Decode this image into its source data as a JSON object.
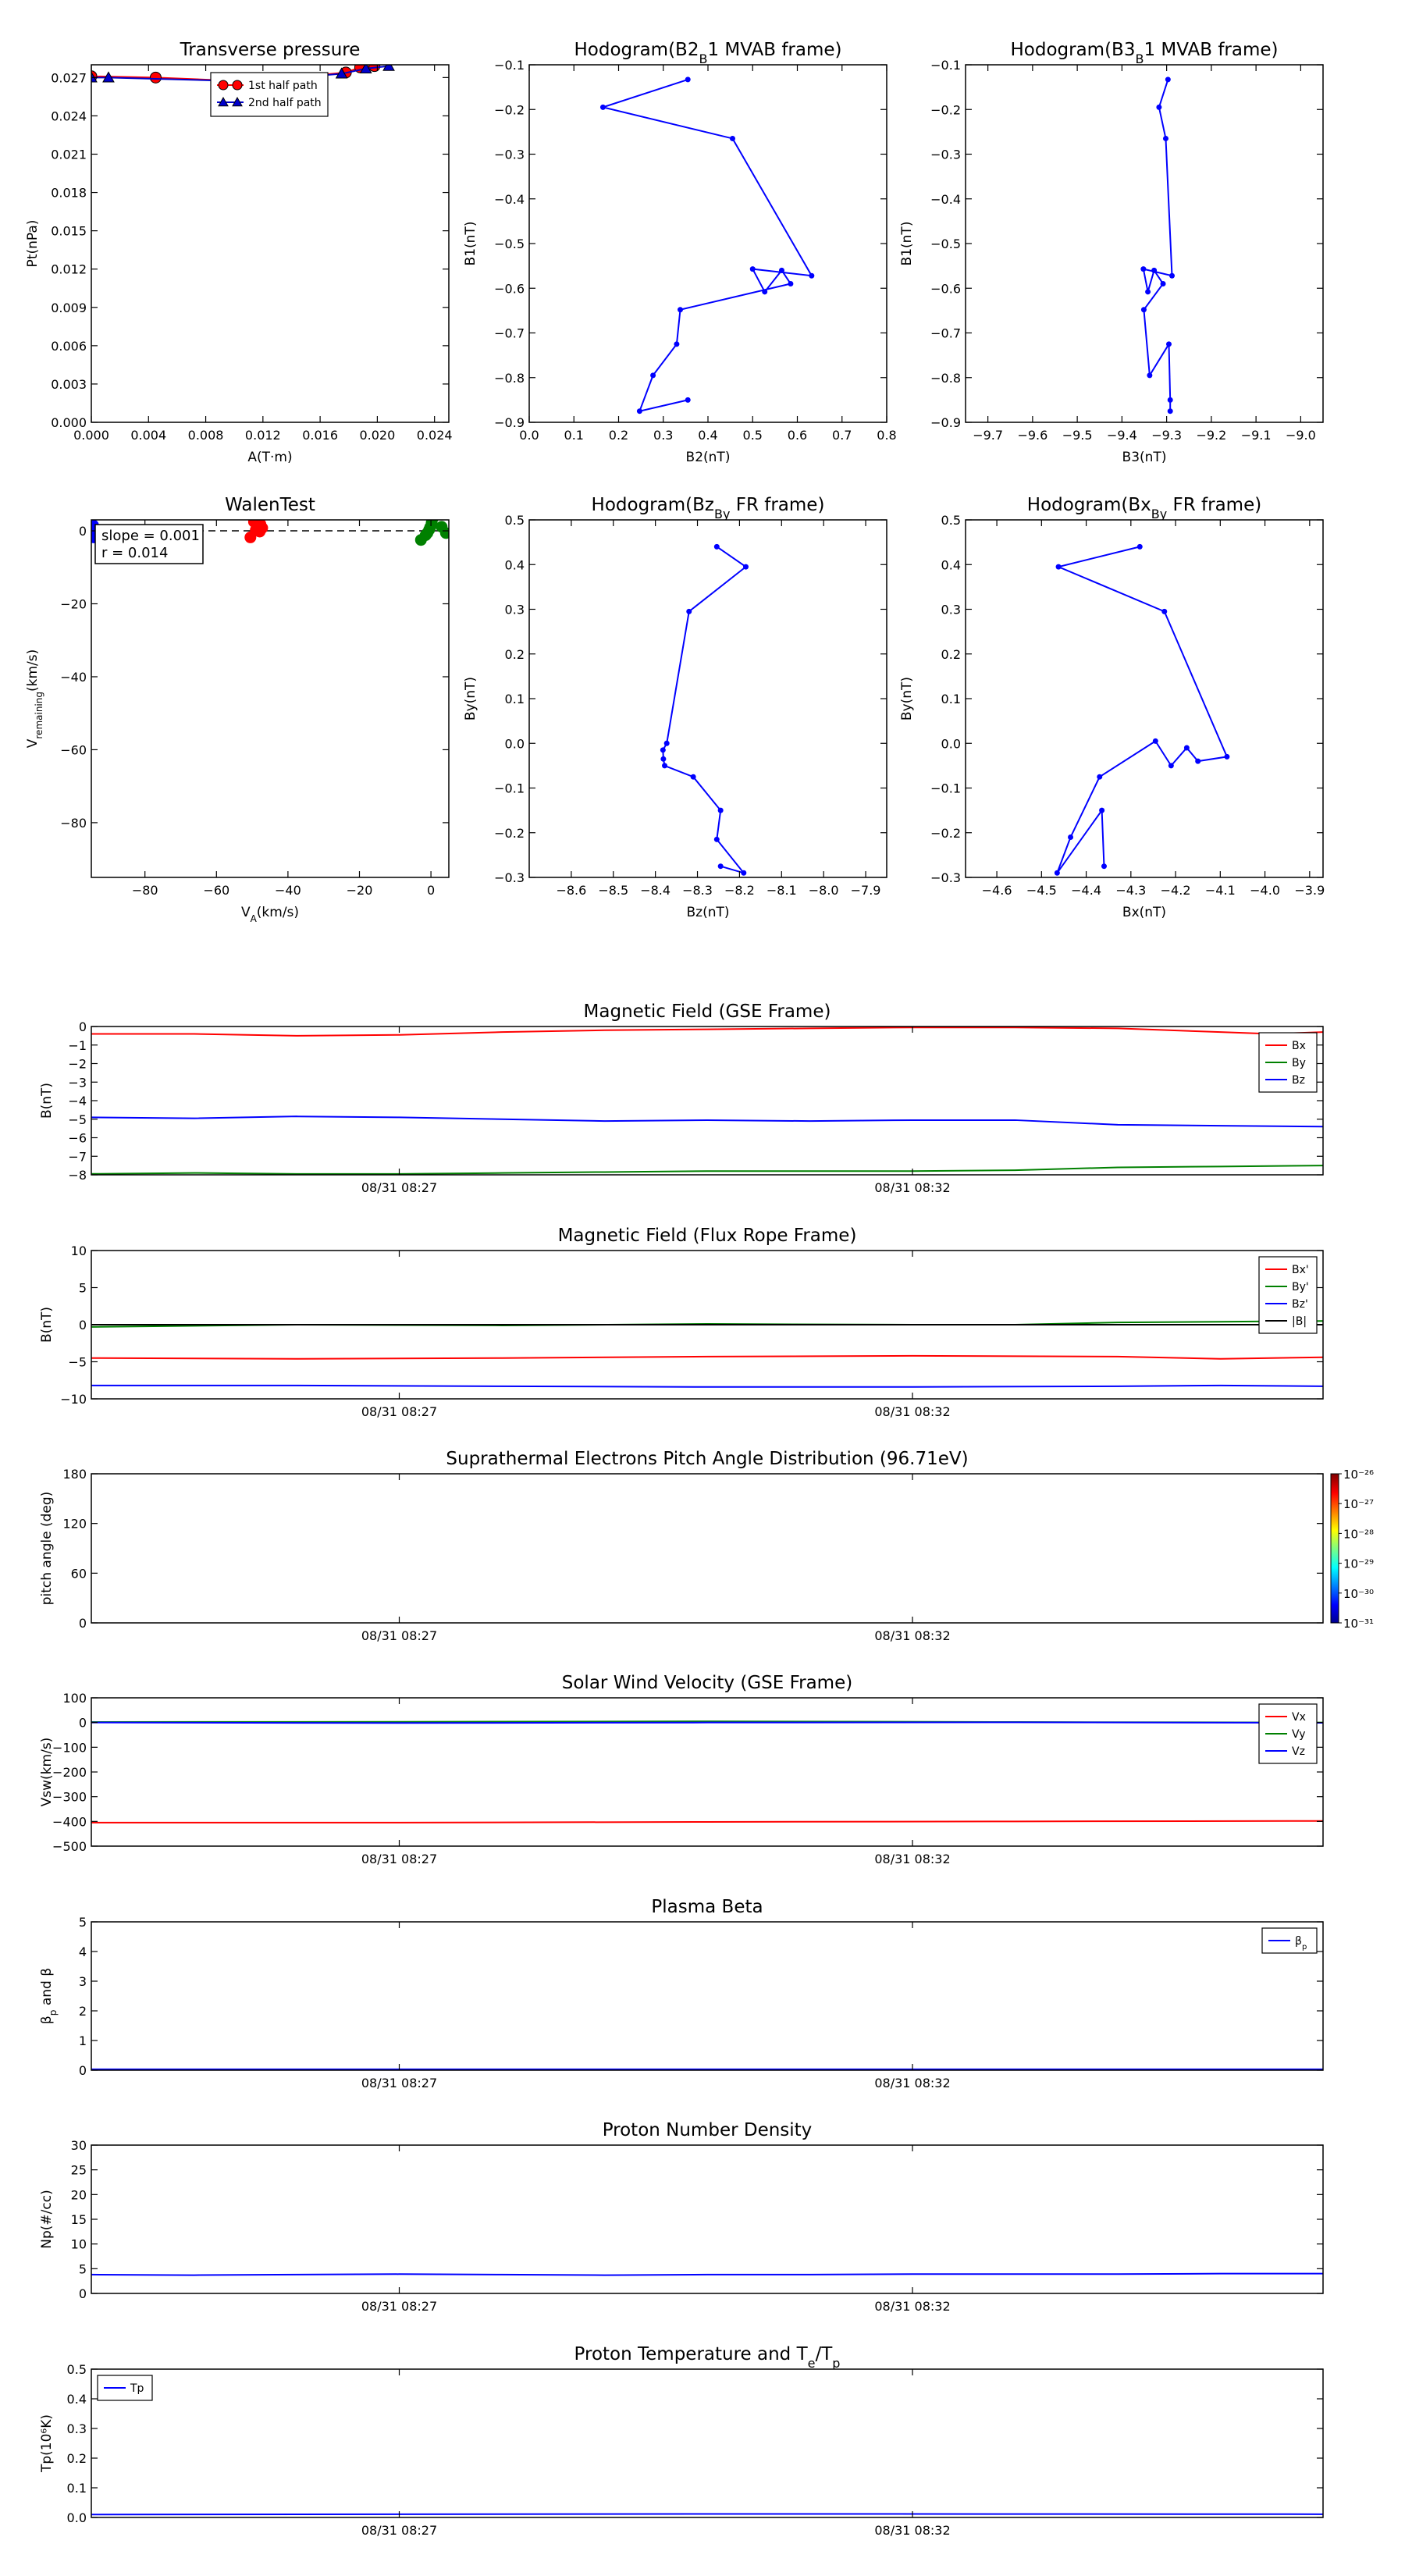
{
  "colorbar": {
    "labels": [
      "10⁻²⁶",
      "10⁻²⁷",
      "10⁻²⁸",
      "10⁻²⁹",
      "10⁻³⁰",
      "10⁻³¹"
    ]
  },
  "chart_data": [
    {
      "id": "pt",
      "type": "scatter",
      "title": "Transverse pressure",
      "xlabel": "A(T·m)",
      "ylabel": "Pt(nPa)",
      "xlim": [
        0,
        0.025
      ],
      "ylim": [
        0,
        0.028
      ],
      "xticks": [
        0,
        0.004,
        0.008,
        0.012,
        0.016,
        0.02,
        0.024
      ],
      "xticklabels": [
        "0.000",
        "0.004",
        "0.008",
        "0.012",
        "0.016",
        "0.020",
        "0.024"
      ],
      "yticks": [
        0,
        0.003,
        0.006,
        0.009,
        0.012,
        0.015,
        0.018,
        0.021,
        0.024,
        0.027
      ],
      "yticklabels": [
        "0.000",
        "0.003",
        "0.006",
        "0.009",
        "0.012",
        "0.015",
        "0.018",
        "0.021",
        "0.024",
        "0.027"
      ],
      "legend": {
        "position": "upper-center",
        "entries": [
          "1st half path",
          "2nd half path"
        ]
      },
      "series": [
        {
          "name": "1st half path",
          "color": "#ff0000",
          "marker": "circle",
          "x": [
            0.0,
            0.0045,
            0.011,
            0.0178,
            0.0188,
            0.0198
          ],
          "y": [
            0.0271,
            0.027,
            0.0267,
            0.0274,
            0.0278,
            0.0279
          ]
        },
        {
          "name": "2nd half path",
          "color": "#0000cc",
          "marker": "triangle",
          "x": [
            0.0,
            0.0012,
            0.011,
            0.0175,
            0.0192,
            0.0208
          ],
          "y": [
            0.027,
            0.027,
            0.0267,
            0.0273,
            0.0277,
            0.0279
          ]
        }
      ]
    },
    {
      "id": "hodo1",
      "type": "line",
      "title": "Hodogram(B2_B1 MVAB frame)",
      "xlabel": "B2(nT)",
      "ylabel": "B1(nT)",
      "xlim": [
        0,
        0.8
      ],
      "ylim": [
        -0.9,
        -0.1
      ],
      "xticks": [
        0,
        0.1,
        0.2,
        0.3,
        0.4,
        0.5,
        0.6,
        0.7,
        0.8
      ],
      "xticklabels": [
        "0.0",
        "0.1",
        "0.2",
        "0.3",
        "0.4",
        "0.5",
        "0.6",
        "0.7",
        "0.8"
      ],
      "yticks": [
        -0.9,
        -0.8,
        -0.7,
        -0.6,
        -0.5,
        -0.4,
        -0.3,
        -0.2,
        -0.1
      ],
      "yticklabels": [
        "−0.9",
        "−0.8",
        "−0.7",
        "−0.6",
        "−0.5",
        "−0.4",
        "−0.3",
        "−0.2",
        "−0.1"
      ],
      "series": [
        {
          "color": "#0000ff",
          "x": [
            0.355,
            0.165,
            0.455,
            0.632,
            0.5,
            0.527,
            0.565,
            0.585,
            0.338,
            0.33,
            0.277,
            0.247,
            0.355
          ],
          "y": [
            -0.133,
            -0.195,
            -0.265,
            -0.572,
            -0.557,
            -0.608,
            -0.56,
            -0.59,
            -0.648,
            -0.725,
            -0.795,
            -0.875,
            -0.85
          ]
        }
      ]
    },
    {
      "id": "hodo2",
      "type": "line",
      "title": "Hodogram(B3_B1 MVAB frame)",
      "xlabel": "B3(nT)",
      "ylabel": "B1(nT)",
      "xlim": [
        -9.75,
        -8.95
      ],
      "ylim": [
        -0.9,
        -0.1
      ],
      "xticks": [
        -9.7,
        -9.6,
        -9.5,
        -9.4,
        -9.3,
        -9.2,
        -9.1,
        -9.0
      ],
      "xticklabels": [
        "−9.7",
        "−9.6",
        "−9.5",
        "−9.4",
        "−9.3",
        "−9.2",
        "−9.1",
        "−9.0"
      ],
      "yticks": [
        -0.9,
        -0.8,
        -0.7,
        -0.6,
        -0.5,
        -0.4,
        -0.3,
        -0.2,
        -0.1
      ],
      "yticklabels": [
        "−0.9",
        "−0.8",
        "−0.7",
        "−0.6",
        "−0.5",
        "−0.4",
        "−0.3",
        "−0.2",
        "−0.1"
      ],
      "series": [
        {
          "color": "#0000ff",
          "x": [
            -9.297,
            -9.317,
            -9.302,
            -9.288,
            -9.352,
            -9.342,
            -9.328,
            -9.308,
            -9.351,
            -9.338,
            -9.295,
            -9.292,
            -9.292
          ],
          "y": [
            -0.133,
            -0.195,
            -0.265,
            -0.572,
            -0.557,
            -0.608,
            -0.56,
            -0.59,
            -0.648,
            -0.795,
            -0.725,
            -0.85,
            -0.875
          ]
        }
      ]
    },
    {
      "id": "walen",
      "type": "scatter",
      "title": "WalenTest",
      "xlabel": "V_A(km/s)",
      "ylabel": "V_remaining(km/s)",
      "xlim": [
        -95,
        5
      ],
      "ylim": [
        -95,
        3
      ],
      "xticks": [
        -80,
        -60,
        -40,
        -20,
        0
      ],
      "xticklabels": [
        "−80",
        "−60",
        "−40",
        "−20",
        "0"
      ],
      "yticks": [
        -80,
        -60,
        -40,
        -20,
        0
      ],
      "yticklabels": [
        "−80",
        "−60",
        "−40",
        "−20",
        "0"
      ],
      "annotation": [
        "slope = 0.001",
        "r = 0.014"
      ],
      "series": [
        {
          "color": "#0000ff",
          "x": [
            -94.5,
            -94.5,
            -94.2,
            -94.3
          ],
          "y": [
            1.5,
            0.5,
            -0.5,
            -1.8
          ]
        },
        {
          "color": "#ff0000",
          "x": [
            -50.5,
            -49.5,
            -48.8,
            -48.2,
            -47.7,
            -47.2,
            -47.9,
            -49.0
          ],
          "y": [
            -1.8,
            2.5,
            3.2,
            2.4,
            1.8,
            0.8,
            -0.2,
            0.2
          ]
        },
        {
          "color": "#008000",
          "x": [
            -2.8,
            -1.5,
            -0.5,
            0.2,
            0.6,
            -0.2,
            -1.0,
            3.0,
            4.2
          ],
          "y": [
            -2.5,
            -1.2,
            0.3,
            2.2,
            3.6,
            1.0,
            -0.6,
            1.1,
            -0.6
          ]
        }
      ]
    },
    {
      "id": "hodo3",
      "type": "line",
      "title": "Hodogram(Bz_By FR frame)",
      "xlabel": "Bz(nT)",
      "ylabel": "By(nT)",
      "xlim": [
        -8.7,
        -7.85
      ],
      "ylim": [
        -0.3,
        0.5
      ],
      "xticks": [
        -8.6,
        -8.5,
        -8.4,
        -8.3,
        -8.2,
        -8.1,
        -8.0,
        -7.9
      ],
      "xticklabels": [
        "−8.6",
        "−8.5",
        "−8.4",
        "−8.3",
        "−8.2",
        "−8.1",
        "−8.0",
        "−7.9"
      ],
      "yticks": [
        -0.3,
        -0.2,
        -0.1,
        0.0,
        0.1,
        0.2,
        0.3,
        0.4,
        0.5
      ],
      "yticklabels": [
        "−0.3",
        "−0.2",
        "−0.1",
        "0.0",
        "0.1",
        "0.2",
        "0.3",
        "0.4",
        "0.5"
      ],
      "series": [
        {
          "color": "#0000ff",
          "x": [
            -8.254,
            -8.185,
            -8.32,
            -8.373,
            -8.382,
            -8.381,
            -8.378,
            -8.31,
            -8.245,
            -8.254,
            -8.19,
            -8.245
          ],
          "y": [
            0.44,
            0.395,
            0.295,
            0.0,
            -0.015,
            -0.035,
            -0.05,
            -0.075,
            -0.15,
            -0.215,
            -0.29,
            -0.275
          ]
        }
      ]
    },
    {
      "id": "hodo4",
      "type": "line",
      "title": "Hodogram(Bx_By FR frame)",
      "xlabel": "Bx(nT)",
      "ylabel": "By(nT)",
      "xlim": [
        -4.67,
        -3.87
      ],
      "ylim": [
        -0.3,
        0.5
      ],
      "xticks": [
        -4.6,
        -4.5,
        -4.4,
        -4.3,
        -4.2,
        -4.1,
        -4.0,
        -3.9
      ],
      "xticklabels": [
        "−4.6",
        "−4.5",
        "−4.4",
        "−4.3",
        "−4.2",
        "−4.1",
        "−4.0",
        "−3.9"
      ],
      "yticks": [
        -0.3,
        -0.2,
        -0.1,
        0.0,
        0.1,
        0.2,
        0.3,
        0.4,
        0.5
      ],
      "yticklabels": [
        "−0.3",
        "−0.2",
        "−0.1",
        "0.0",
        "0.1",
        "0.2",
        "0.3",
        "0.4",
        "0.5"
      ],
      "series": [
        {
          "color": "#0000ff",
          "x": [
            -4.28,
            -4.462,
            -4.225,
            -4.085,
            -4.15,
            -4.175,
            -4.21,
            -4.245,
            -4.37,
            -4.435,
            -4.465,
            -4.365,
            -4.36
          ],
          "y": [
            0.44,
            0.395,
            0.295,
            -0.03,
            -0.04,
            -0.01,
            -0.05,
            0.005,
            -0.075,
            -0.21,
            -0.29,
            -0.15,
            -0.275
          ]
        }
      ]
    },
    {
      "id": "mag_gse",
      "type": "line",
      "title": "Magnetic Field (GSE Frame)",
      "ylabel": "B(nT)",
      "xlim": [
        0,
        12
      ],
      "ylim": [
        -8,
        0
      ],
      "xticks": [
        3,
        8
      ],
      "xticklabels": [
        "08/31 08:27",
        "08/31 08:32"
      ],
      "yticks": [
        -8,
        -7,
        -6,
        -5,
        -4,
        -3,
        -2,
        -1,
        0
      ],
      "yticklabels": [
        "−8",
        "−7",
        "−6",
        "−5",
        "−4",
        "−3",
        "−2",
        "−1",
        "0"
      ],
      "legend": {
        "position": "upper-right",
        "entries": [
          "Bx",
          "By",
          "Bz"
        ]
      },
      "series": [
        {
          "name": "Bx",
          "color": "#ff0000",
          "x": [
            0,
            1,
            2,
            3,
            4,
            5,
            6,
            7,
            8,
            9,
            10,
            11,
            11.5,
            12
          ],
          "y": [
            -0.4,
            -0.4,
            -0.5,
            -0.45,
            -0.3,
            -0.2,
            -0.15,
            -0.1,
            -0.05,
            -0.05,
            -0.1,
            -0.3,
            -0.4,
            -0.3
          ]
        },
        {
          "name": "By",
          "color": "#008000",
          "x": [
            0,
            1,
            2,
            3,
            4,
            5,
            6,
            7,
            8,
            9,
            10,
            11,
            12
          ],
          "y": [
            -7.95,
            -7.9,
            -7.95,
            -7.95,
            -7.9,
            -7.85,
            -7.8,
            -7.8,
            -7.8,
            -7.75,
            -7.6,
            -7.55,
            -7.5
          ]
        },
        {
          "name": "Bz",
          "color": "#0000ff",
          "x": [
            0,
            1,
            2,
            3,
            4,
            5,
            6,
            7,
            8,
            9,
            10,
            11,
            12
          ],
          "y": [
            -4.9,
            -4.95,
            -4.85,
            -4.9,
            -5.0,
            -5.1,
            -5.05,
            -5.1,
            -5.05,
            -5.05,
            -5.3,
            -5.35,
            -5.4
          ]
        }
      ]
    },
    {
      "id": "mag_fr",
      "type": "line",
      "title": "Magnetic Field (Flux Rope Frame)",
      "ylabel": "B(nT)",
      "xlim": [
        0,
        12
      ],
      "ylim": [
        -10,
        10
      ],
      "xticks": [
        3,
        8
      ],
      "xticklabels": [
        "08/31 08:27",
        "08/31 08:32"
      ],
      "yticks": [
        -10,
        -5,
        0,
        5,
        10
      ],
      "yticklabels": [
        "−10",
        "−5",
        "0",
        "5",
        "10"
      ],
      "legend": {
        "position": "upper-right",
        "entries": [
          "Bx'",
          "By'",
          "Bz'",
          "|B|"
        ]
      },
      "series": [
        {
          "name": "Bx'",
          "color": "#ff0000",
          "x": [
            0,
            2,
            4,
            6,
            8,
            10,
            11,
            12
          ],
          "y": [
            -4.5,
            -4.6,
            -4.5,
            -4.3,
            -4.2,
            -4.3,
            -4.6,
            -4.4
          ]
        },
        {
          "name": "By'",
          "color": "#008000",
          "x": [
            0,
            2,
            4,
            6,
            8,
            9,
            10,
            11,
            12
          ],
          "y": [
            -0.3,
            0.0,
            -0.1,
            0.1,
            0.0,
            0.0,
            0.3,
            0.4,
            0.5
          ]
        },
        {
          "name": "Bz'",
          "color": "#0000ff",
          "x": [
            0,
            2,
            4,
            6,
            8,
            10,
            11,
            12
          ],
          "y": [
            -8.2,
            -8.2,
            -8.3,
            -8.4,
            -8.4,
            -8.3,
            -8.2,
            -8.3
          ]
        },
        {
          "name": "|B|",
          "color": "#000000",
          "x": [
            0,
            12
          ],
          "y": [
            0,
            0
          ]
        }
      ]
    },
    {
      "id": "pad",
      "type": "heatmap",
      "title": "Suprathermal Electrons Pitch Angle Distribution (96.71eV)",
      "ylabel": "pitch angle (deg)",
      "xlim": [
        0,
        12
      ],
      "ylim": [
        0,
        180
      ],
      "xticks": [
        3,
        8
      ],
      "xticklabels": [
        "08/31 08:27",
        "08/31 08:32"
      ],
      "yticks": [
        0,
        60,
        120,
        180
      ],
      "yticklabels": [
        "0",
        "60",
        "120",
        "180"
      ],
      "series": []
    },
    {
      "id": "vsw",
      "type": "line",
      "title": "Solar Wind Velocity (GSE Frame)",
      "ylabel": "Vsw(km/s)",
      "xlim": [
        0,
        12
      ],
      "ylim": [
        -500,
        100
      ],
      "xticks": [
        3,
        8
      ],
      "xticklabels": [
        "08/31 08:27",
        "08/31 08:32"
      ],
      "yticks": [
        -500,
        -400,
        -300,
        -200,
        -100,
        0,
        100
      ],
      "yticklabels": [
        "−500",
        "−400",
        "−300",
        "−200",
        "−100",
        "0",
        "100"
      ],
      "legend": {
        "position": "upper-right",
        "entries": [
          "Vx",
          "Vy",
          "Vz"
        ]
      },
      "series": [
        {
          "name": "Vx",
          "color": "#ff0000",
          "x": [
            0,
            3,
            6,
            9,
            12
          ],
          "y": [
            -405,
            -405,
            -402,
            -400,
            -398
          ]
        },
        {
          "name": "Vy",
          "color": "#008000",
          "x": [
            0,
            3,
            6,
            9,
            12
          ],
          "y": [
            2,
            3,
            5,
            2,
            0
          ]
        },
        {
          "name": "Vz",
          "color": "#0000ff",
          "x": [
            0,
            3,
            6,
            9,
            12
          ],
          "y": [
            0,
            -2,
            0,
            1,
            -1
          ]
        }
      ]
    },
    {
      "id": "beta",
      "type": "line",
      "title": "Plasma Beta",
      "ylabel": "β_p and β",
      "xlim": [
        0,
        12
      ],
      "ylim": [
        0,
        5
      ],
      "xticks": [
        3,
        8
      ],
      "xticklabels": [
        "08/31 08:27",
        "08/31 08:32"
      ],
      "yticks": [
        0,
        1,
        2,
        3,
        4,
        5
      ],
      "yticklabels": [
        "0",
        "1",
        "2",
        "3",
        "4",
        "5"
      ],
      "legend": {
        "position": "upper-right",
        "entries": [
          "β_p"
        ]
      },
      "series": [
        {
          "name": "β_p",
          "color": "#0000ff",
          "x": [
            0,
            6,
            12
          ],
          "y": [
            0.03,
            0.03,
            0.03
          ]
        }
      ]
    },
    {
      "id": "np",
      "type": "line",
      "title": "Proton Number Density",
      "ylabel": "Np(#/cc)",
      "xlim": [
        0,
        12
      ],
      "ylim": [
        0,
        30
      ],
      "xticks": [
        3,
        8
      ],
      "xticklabels": [
        "08/31 08:27",
        "08/31 08:32"
      ],
      "yticks": [
        0,
        5,
        10,
        15,
        20,
        25,
        30
      ],
      "yticklabels": [
        "0",
        "5",
        "10",
        "15",
        "20",
        "25",
        "30"
      ],
      "series": [
        {
          "color": "#0000ff",
          "x": [
            0,
            1,
            2,
            3,
            4,
            5,
            6,
            7,
            8,
            9,
            10,
            11,
            12
          ],
          "y": [
            3.8,
            3.7,
            3.8,
            3.9,
            3.8,
            3.7,
            3.8,
            3.8,
            3.9,
            3.9,
            3.9,
            4.0,
            4.0
          ]
        }
      ]
    },
    {
      "id": "tp",
      "type": "line",
      "title": "Proton Temperature and T_e/T_p",
      "ylabel": "Tp(10⁶K)",
      "xlim": [
        0,
        12
      ],
      "ylim": [
        0,
        0.5
      ],
      "xticks": [
        3,
        8
      ],
      "xticklabels": [
        "08/31 08:27",
        "08/31 08:32"
      ],
      "yticks": [
        0,
        0.1,
        0.2,
        0.3,
        0.4,
        0.5
      ],
      "yticklabels": [
        "0.0",
        "0.1",
        "0.2",
        "0.3",
        "0.4",
        "0.5"
      ],
      "legend": {
        "position": "upper-left",
        "entries": [
          "Tp"
        ]
      },
      "series": [
        {
          "name": "Tp",
          "color": "#0000ff",
          "x": [
            0,
            6,
            12
          ],
          "y": [
            0.01,
            0.012,
            0.011
          ]
        }
      ]
    }
  ]
}
